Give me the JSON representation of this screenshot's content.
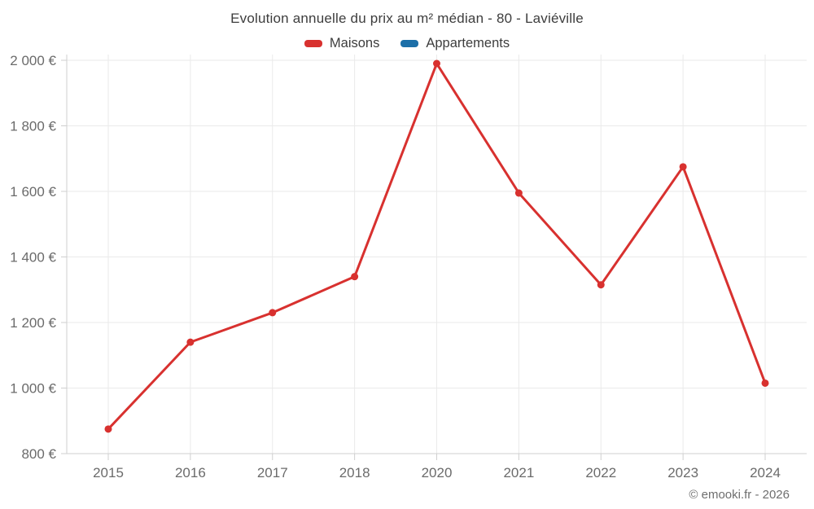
{
  "chart": {
    "title": "Evolution annuelle du prix au m² médian - 80 - Laviéville"
  },
  "legend": {
    "items": [
      {
        "label": "Maisons",
        "color": "#d8312f"
      },
      {
        "label": "Appartements",
        "color": "#1c6fa8"
      }
    ]
  },
  "footer": {
    "text": "© emooki.fr - 2026"
  },
  "chart_data": {
    "type": "line",
    "title": "Evolution annuelle du prix au m² médian - 80 - Laviéville",
    "categories": [
      "2015",
      "2016",
      "2017",
      "2018",
      "2020",
      "2021",
      "2022",
      "2023",
      "2024"
    ],
    "series": [
      {
        "name": "Maisons",
        "color": "#d8312f",
        "values": [
          875,
          1140,
          1230,
          1340,
          1990,
          1595,
          1315,
          1675,
          1015
        ]
      },
      {
        "name": "Appartements",
        "color": "#1c6fa8",
        "values": []
      }
    ],
    "xlabel": "",
    "ylabel": "",
    "ylim": [
      800,
      2000
    ],
    "yticks": [
      800,
      1000,
      1200,
      1400,
      1600,
      1800,
      2000
    ],
    "ytick_labels": [
      "800 €",
      "1 000 €",
      "1 200 €",
      "1 400 €",
      "1 600 €",
      "1 800 €",
      "2 000 €"
    ],
    "grid": true,
    "legend_position": "top",
    "colors": {
      "gridline": "#eaeaea",
      "axis": "#cfcfcf",
      "tick_label": "#6b6b6b"
    }
  }
}
